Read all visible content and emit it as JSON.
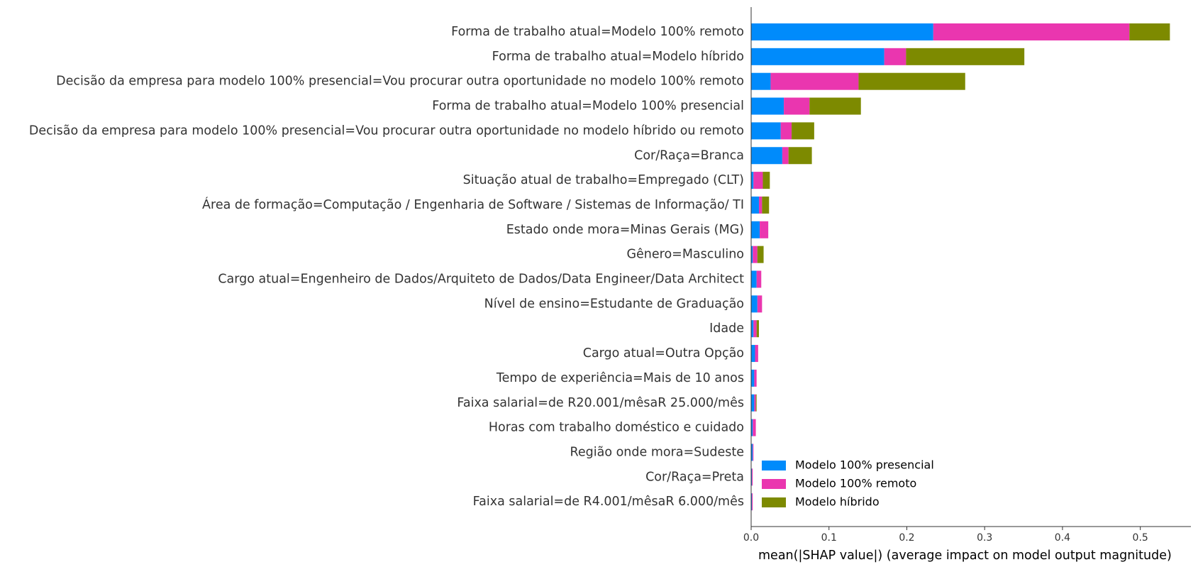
{
  "chart_data": {
    "type": "bar",
    "orientation": "horizontal",
    "stacked": true,
    "xlabel": "mean(|SHAP value|) (average impact on model output magnitude)",
    "xlim": [
      0,
      0.565
    ],
    "xticks": [
      "0.0",
      "0.1",
      "0.2",
      "0.3",
      "0.4",
      "0.5"
    ],
    "grid": false,
    "legend_position": "bottom-right",
    "categories": [
      "Forma de trabalho atual=Modelo 100% remoto",
      "Forma de trabalho atual=Modelo híbrido",
      "Decisão da empresa para modelo 100% presencial=Vou procurar outra oportunidade no modelo 100% remoto",
      "Forma de trabalho atual=Modelo 100% presencial",
      "Decisão da empresa para modelo 100% presencial=Vou procurar outra oportunidade no modelo híbrido ou remoto",
      "Cor/Raça=Branca",
      "Situação atual de trabalho=Empregado (CLT)",
      "Área de formação=Computação / Engenharia de Software / Sistemas de Informação/ TI",
      "Estado onde mora=Minas Gerais (MG)",
      "Gênero=Masculino",
      "Cargo atual=Engenheiro de Dados/Arquiteto de Dados/Data Engineer/Data Architect",
      "Nível de ensino=Estudante de Graduação",
      "Idade",
      "Cargo atual=Outra Opção",
      "Tempo de experiência=Mais de 10 anos",
      "Faixa salarial=de R20.001/mêsaR 25.000/mês",
      "Horas com trabalho doméstico e cuidado",
      "Região onde mora=Sudeste",
      "Cor/Raça=Preta",
      "Faixa salarial=de R4.001/mêsaR 6.000/mês"
    ],
    "series": [
      {
        "name": "Modelo 100% presencial",
        "color": "#008bfb",
        "values": [
          0.234,
          0.171,
          0.025,
          0.042,
          0.038,
          0.04,
          0.003,
          0.01,
          0.011,
          0.002,
          0.007,
          0.008,
          0.003,
          0.005,
          0.004,
          0.004,
          0.002,
          0.002,
          0.001,
          0.001
        ]
      },
      {
        "name": "Modelo 100% remoto",
        "color": "#ea36af",
        "values": [
          0.252,
          0.028,
          0.113,
          0.033,
          0.014,
          0.008,
          0.012,
          0.004,
          0.011,
          0.006,
          0.006,
          0.006,
          0.004,
          0.004,
          0.003,
          0.002,
          0.004,
          0.001,
          0.001,
          0.001
        ]
      },
      {
        "name": "Modelo híbrido",
        "color": "#7d8a00",
        "values": [
          0.052,
          0.152,
          0.137,
          0.066,
          0.029,
          0.03,
          0.009,
          0.009,
          0.0,
          0.008,
          0.0,
          0.0,
          0.003,
          0.0,
          0.0,
          0.001,
          0.0,
          0.0,
          0.0,
          0.0
        ]
      }
    ]
  }
}
